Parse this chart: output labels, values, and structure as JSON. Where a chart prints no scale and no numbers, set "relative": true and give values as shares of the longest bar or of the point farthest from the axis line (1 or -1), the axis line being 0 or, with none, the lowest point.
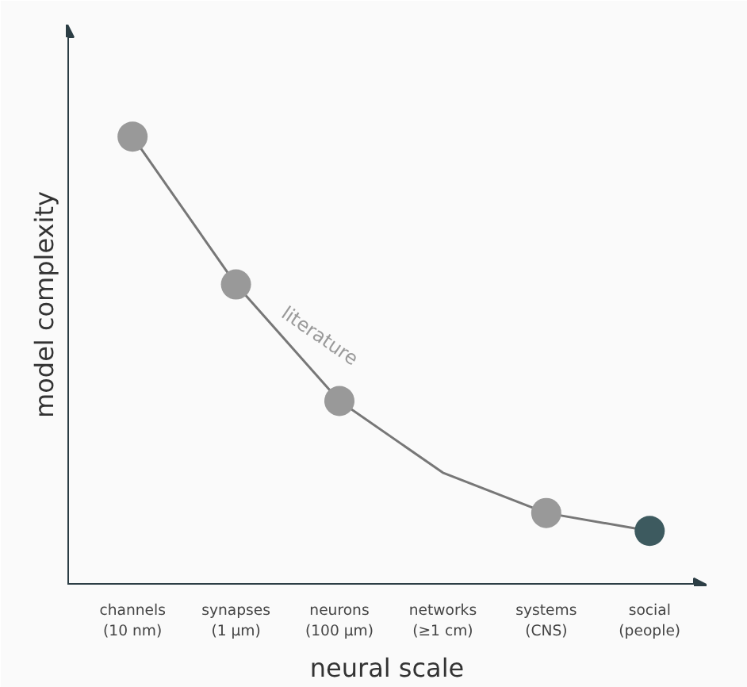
{
  "chart_data": {
    "type": "line",
    "relative": true,
    "xlabel": "neural scale",
    "ylabel": "model complexity",
    "categories": [
      "channels\n(10 nm)",
      "synapses\n(1 μm)",
      "neurons\n(100 μm)",
      "networks\n(≥1 cm)",
      "systems\n(CNS)",
      "social\n(people)"
    ],
    "series": [
      {
        "name": "literature",
        "color": "#777777",
        "values": [
          1,
          0.67,
          0.41,
          0.25,
          0.16,
          0.12
        ]
      },
      {
        "type": "scatter",
        "marker": "circle",
        "colors": [
          "#999999",
          "#999999",
          "#999999",
          null,
          "#999999",
          "#3d5a5f"
        ],
        "values": [
          1,
          0.67,
          0.41,
          null,
          0.16,
          0.12
        ]
      }
    ],
    "grid": false
  }
}
